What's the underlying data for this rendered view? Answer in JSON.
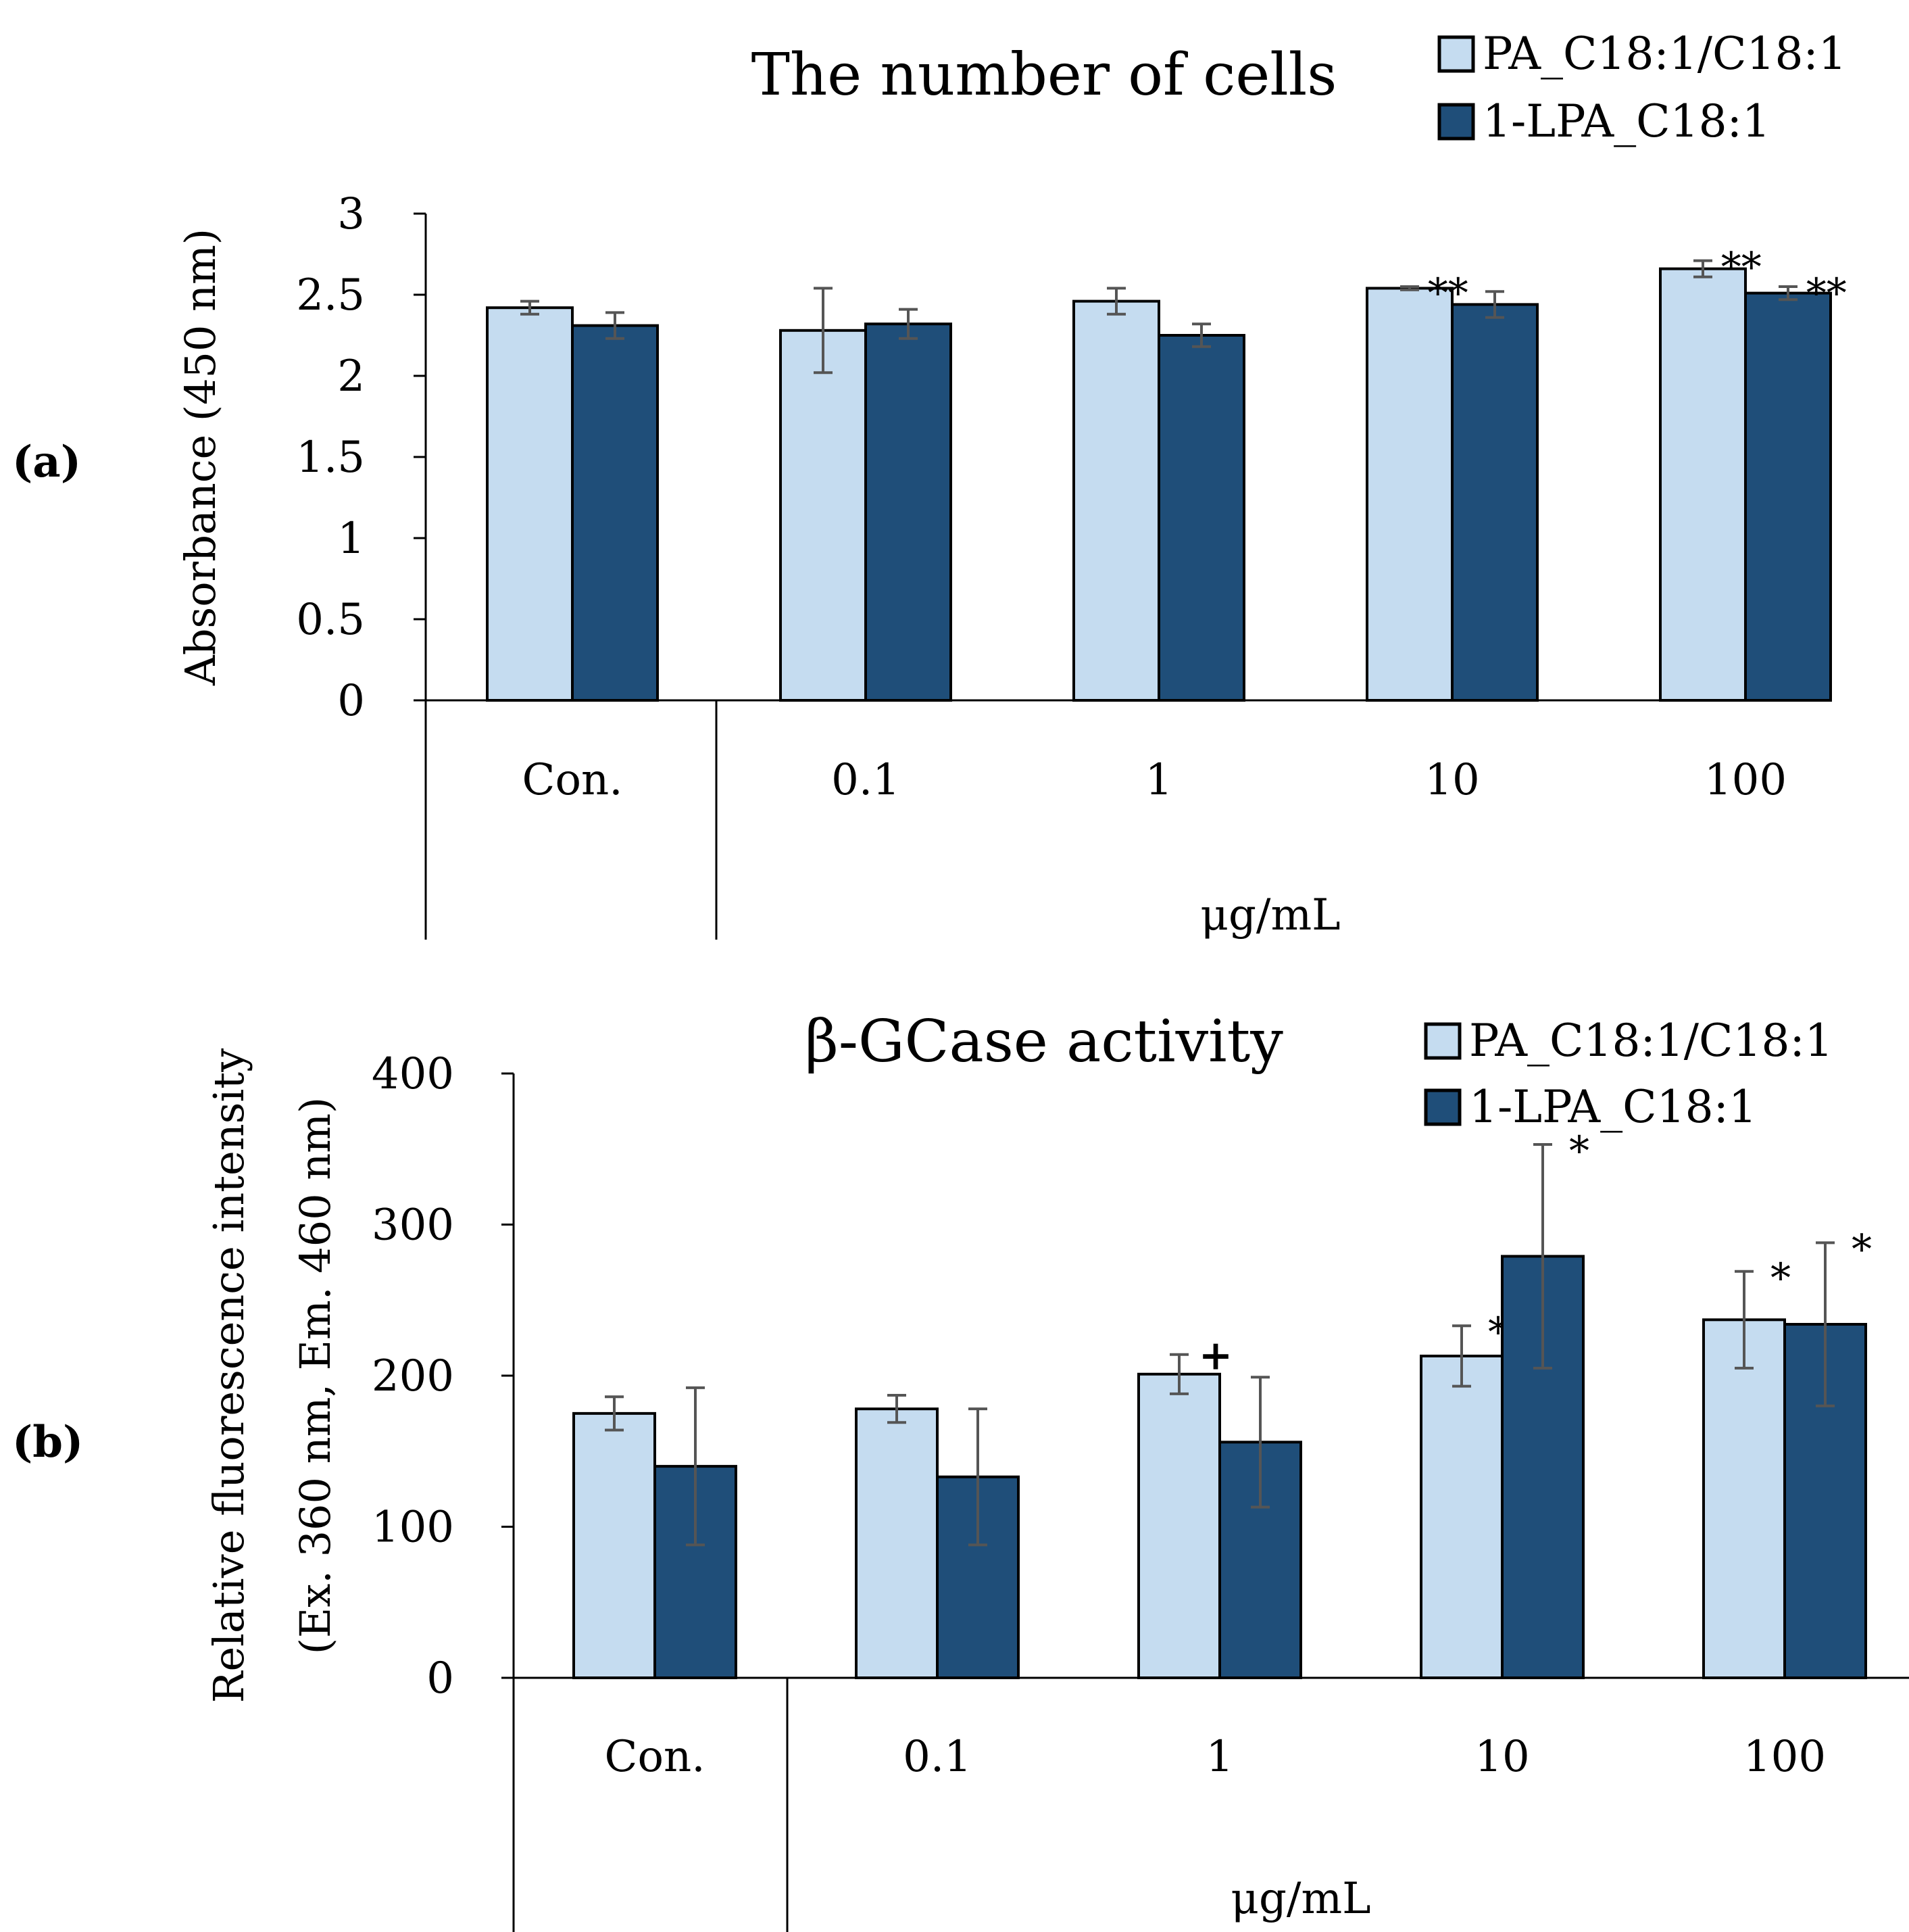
{
  "colors": {
    "series_a": "#c5dcf0",
    "series_b": "#1f4e79",
    "error_bar": "#555555",
    "axis": "#000000"
  },
  "chart_data": [
    {
      "type": "bar",
      "panel_label": "(a)",
      "panel_letter": "a",
      "title": "The number of cells",
      "ylabel": "Absorbance (450 nm)",
      "xlabel": "μg/mL",
      "categories": [
        "Con.",
        "0.1",
        "1",
        "10",
        "100"
      ],
      "ylim": [
        0,
        3
      ],
      "yticks": [
        0,
        0.5,
        1,
        1.5,
        2,
        2.5,
        3
      ],
      "ytick_labels": [
        "0",
        "0.5",
        "1",
        "1.5",
        "2",
        "2.5",
        "3"
      ],
      "legend_position": "top-right",
      "series": [
        {
          "name": "PA_C18:1/C18:1",
          "values": [
            2.42,
            2.28,
            2.46,
            2.54,
            2.66
          ],
          "errors": [
            0.04,
            0.26,
            0.08,
            0.01,
            0.05
          ],
          "annotations": [
            "",
            "",
            "",
            "**",
            "**"
          ]
        },
        {
          "name": "1-LPA_C18:1",
          "values": [
            2.31,
            2.32,
            2.25,
            2.44,
            2.51
          ],
          "errors": [
            0.08,
            0.09,
            0.07,
            0.08,
            0.04
          ],
          "annotations": [
            "",
            "",
            "",
            "",
            "**"
          ]
        }
      ]
    },
    {
      "type": "bar",
      "panel_label": "(b)",
      "panel_letter": "b",
      "title": "β-GCase activity",
      "ylabel": "Relative fluorescence intensity",
      "ylabel2": "(Ex. 360 nm, Em. 460 nm)",
      "xlabel": "μg/mL",
      "categories": [
        "Con.",
        "0.1",
        "1",
        "10",
        "100"
      ],
      "ylim": [
        0,
        400
      ],
      "yticks": [
        0,
        100,
        200,
        300,
        400
      ],
      "ytick_labels": [
        "0",
        "100",
        "200",
        "300",
        "400"
      ],
      "legend_position": "top-right",
      "series": [
        {
          "name": "PA_C18:1/C18:1",
          "values": [
            175,
            178,
            201,
            213,
            237
          ],
          "errors": [
            11,
            9,
            13,
            20,
            32
          ],
          "annotations": [
            "",
            "",
            "+",
            "*",
            "*"
          ]
        },
        {
          "name": "1-LPA_C18:1",
          "values": [
            140,
            133,
            156,
            279,
            234
          ],
          "errors": [
            52,
            45,
            43,
            74,
            54
          ],
          "annotations": [
            "",
            "",
            "",
            "*",
            "*"
          ]
        }
      ]
    }
  ]
}
